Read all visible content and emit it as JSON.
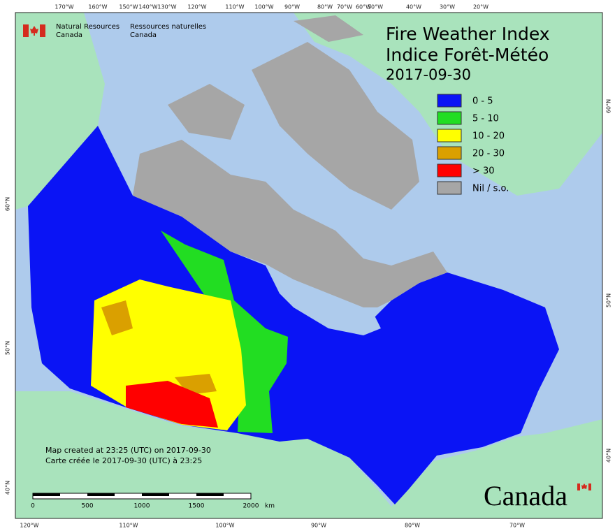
{
  "header": {
    "agency_en": [
      "Natural Resources",
      "Canada"
    ],
    "agency_fr": [
      "Ressources naturelles",
      "Canada"
    ]
  },
  "title": [
    "Fire Weather Index",
    "Indice Forêt-Météo"
  ],
  "date": "2017-09-30",
  "legend": [
    {
      "label": "0 - 5",
      "color": "#0a14f5"
    },
    {
      "label": "5 - 10",
      "color": "#22dd22"
    },
    {
      "label": "10 - 20",
      "color": "#ffff00"
    },
    {
      "label": "20 - 30",
      "color": "#daa000"
    },
    {
      "label": "> 30",
      "color": "#ff0000"
    },
    {
      "label": "Nil / s.o.",
      "color": "#a6a6a6"
    }
  ],
  "credits": [
    "Map created at 23:25 (UTC) on 2017-09-30",
    "Carte créée le 2017-09-30 (UTC) à 23:25"
  ],
  "scale_bar": {
    "labels": [
      "0",
      "500",
      "1000",
      "1500",
      "2000"
    ],
    "unit": "km"
  },
  "graticule": {
    "top": [
      "170°W",
      "160°W",
      "150°W",
      "140°W",
      "130°W",
      "120°W",
      "110°W",
      "100°W",
      "90°W",
      "80°W",
      "70°W",
      "60°W",
      "50°W",
      "40°W",
      "30°W",
      "20°W"
    ],
    "bottom": [
      "120°W",
      "110°W",
      "100°W",
      "90°W",
      "80°W",
      "70°W"
    ],
    "left": [
      "60°N",
      "50°N",
      "40°N"
    ],
    "right": [
      "60°N",
      "50°N",
      "40°N"
    ]
  },
  "wordmark": "Canada"
}
